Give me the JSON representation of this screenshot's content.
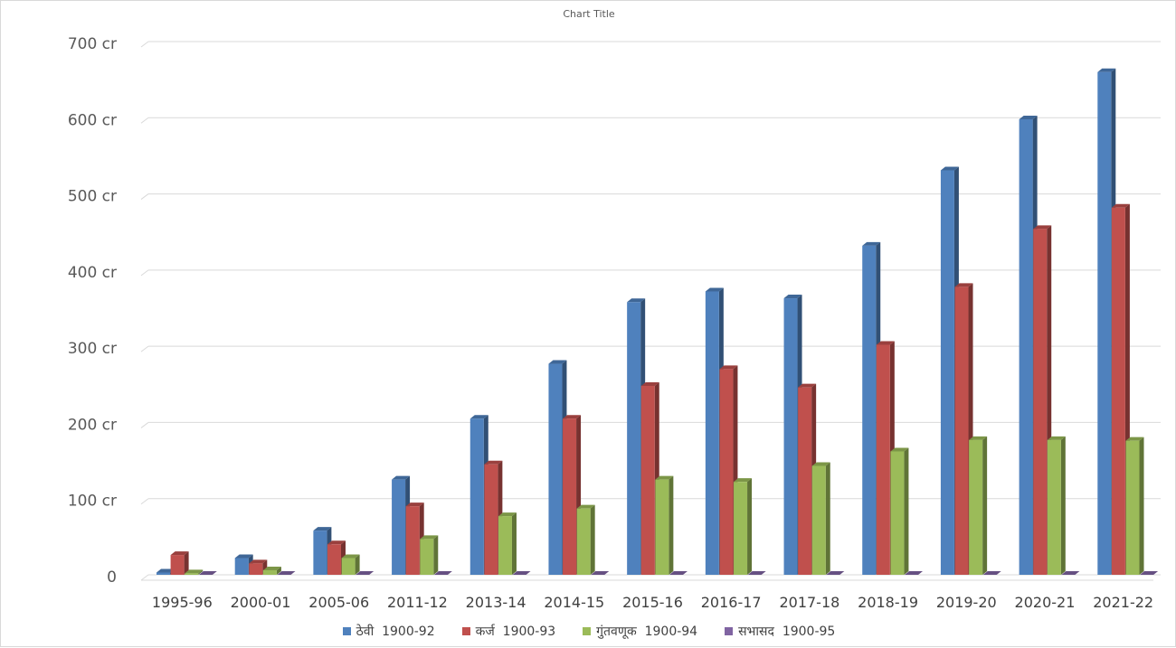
{
  "chart_data": {
    "type": "bar",
    "title": "Chart Title",
    "categories": [
      "1995-96",
      "2000-01",
      "2005-06",
      "2011-12",
      "2013-14",
      "2014-15",
      "2015-16",
      "2016-17",
      "2017-18",
      "2018-19",
      "2019-20",
      "2020-21",
      "2021-22"
    ],
    "series": [
      {
        "name": "ठेवी  1900-92",
        "color": "#4f81bd",
        "values": [
          3,
          22,
          58,
          125,
          205,
          277,
          358,
          372,
          363,
          432,
          531,
          598,
          660
        ]
      },
      {
        "name": "कर्ज  1900-93",
        "color": "#c0504d",
        "values": [
          26,
          15,
          40,
          90,
          145,
          205,
          248,
          270,
          246,
          302,
          378,
          454,
          482
        ]
      },
      {
        "name": "गुंतवणूक  1900-94",
        "color": "#9bbb59",
        "values": [
          2,
          6,
          22,
          47,
          77,
          87,
          125,
          122,
          143,
          162,
          177,
          177,
          176
        ]
      },
      {
        "name": "सभासद  1900-95",
        "color": "#8064a2",
        "values": [
          0,
          0,
          0,
          0,
          0,
          0,
          0,
          0,
          0,
          0,
          0,
          0,
          0
        ]
      }
    ],
    "y_ticks": [
      "0",
      "100 cr",
      "200 cr",
      "300 cr",
      "400 cr",
      "500 cr",
      "600 cr",
      "700 cr"
    ],
    "ylim": [
      0,
      700
    ],
    "xlabel": "",
    "ylabel": "",
    "grid": true,
    "legend_position": "bottom"
  }
}
